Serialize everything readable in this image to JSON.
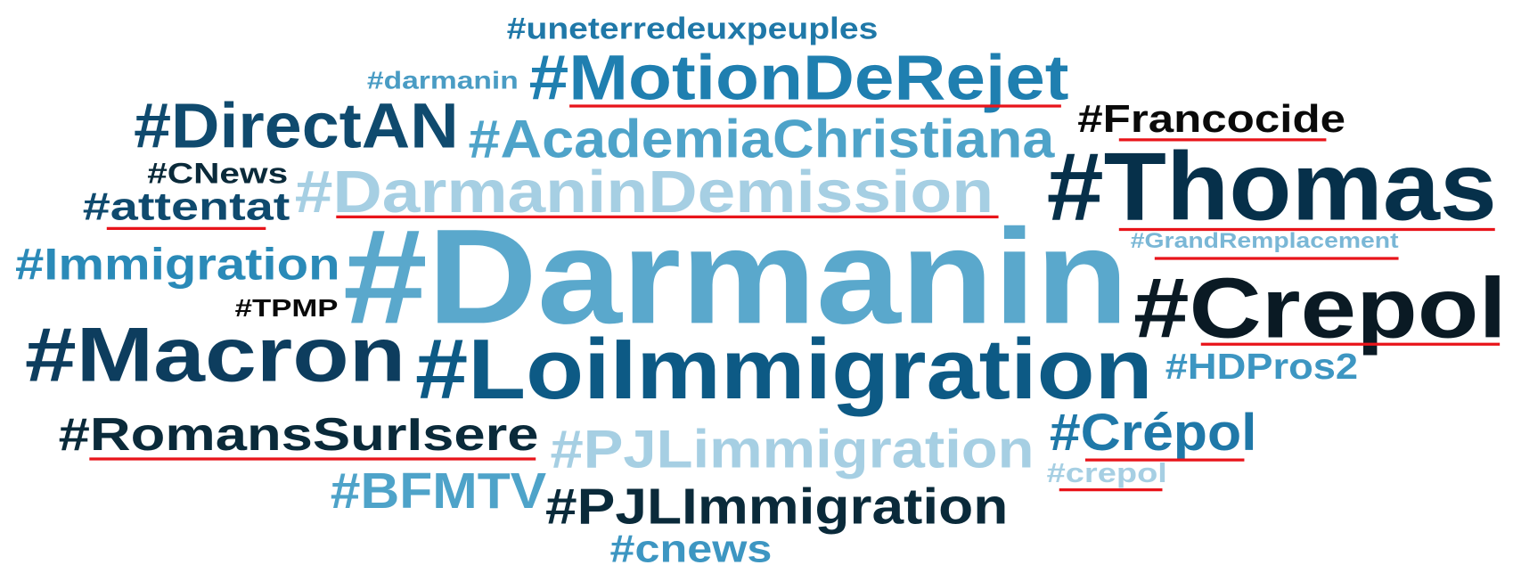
{
  "words": [
    {
      "text": "#uneterredeuxpeuples",
      "color": "#1f78a8"
    },
    {
      "text": "#darmanin",
      "color": "#4a9cc4"
    },
    {
      "text": "#MotionDeRejet",
      "color": "#1f7fb0"
    },
    {
      "text": "#DirectAN",
      "color": "#0f4a6e"
    },
    {
      "text": "#AcademiaChristiana",
      "color": "#4ea3c9"
    },
    {
      "text": "#Francocide",
      "color": "#0a0a0a"
    },
    {
      "text": "#CNews",
      "color": "#0a2a3a"
    },
    {
      "text": "#DarmaninDemission",
      "color": "#a6cfe3"
    },
    {
      "text": "#attentat",
      "color": "#0f4a6e"
    },
    {
      "text": "#Thomas",
      "color": "#06304a"
    },
    {
      "text": "#GrandRemplacement",
      "color": "#7ab7d6"
    },
    {
      "text": "#Immigration",
      "color": "#2a8ab8"
    },
    {
      "text": "#Darmanin",
      "color": "#5aa8cc"
    },
    {
      "text": "#TPMP",
      "color": "#0a0a0a"
    },
    {
      "text": "#Crepol",
      "color": "#0a1a24"
    },
    {
      "text": "#Macron",
      "color": "#0d3d5e"
    },
    {
      "text": "#LoiImmigration",
      "color": "#0d5a85"
    },
    {
      "text": "#HDPros2",
      "color": "#3d96c2"
    },
    {
      "text": "#RomansSurIsere",
      "color": "#0a2a3a"
    },
    {
      "text": "#Crépol",
      "color": "#1f78a8"
    },
    {
      "text": "#PJLimmigration",
      "color": "#a6cfe3"
    },
    {
      "text": "#crepol",
      "color": "#a6cfe3"
    },
    {
      "text": "#BFMTV",
      "color": "#4ea3c9"
    },
    {
      "text": "#PJLImmigration",
      "color": "#0a2a3a"
    },
    {
      "text": "#cnews",
      "color": "#3d96c2"
    }
  ]
}
